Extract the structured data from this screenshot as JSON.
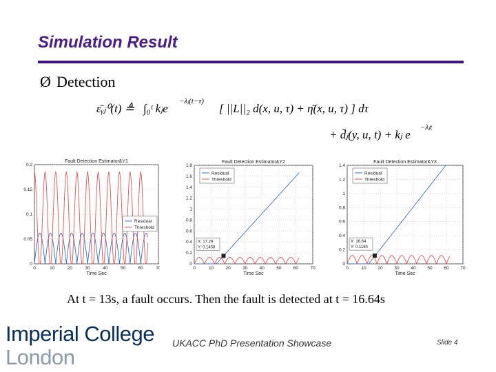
{
  "slide": {
    "title": "Simulation Result",
    "bullet": "Detection",
    "bullet_symbol": "Ø",
    "formula": {
      "lhs": "ε̄ᵧⱼ⁰(t) ≜",
      "integral": "∫₀ᵗ kⱼe",
      "exp1": "−λⱼ(t−τ)",
      "body": "[ ||L||₂ d(x, u, τ) + η̄(x, u, τ) ] dτ",
      "line2": "+ d̄ⱼ(y, u, t) + kⱼ e",
      "exp2": "−λⱼt"
    },
    "caption": "At t = 13s, a fault occurs.  Then the fault is detected at t = 16.64s",
    "footer": {
      "logo_line1": "Imperial College",
      "logo_line2": "London",
      "center": "UKACC PhD Presentation Showcase",
      "slide_number": "Slide 4"
    }
  },
  "chart_data": [
    {
      "type": "line",
      "title": "Fault Detection Estimator&Y1",
      "xlabel": "Time Sec",
      "xlim": [
        0,
        70
      ],
      "ylim": [
        0,
        0.2
      ],
      "xticks": [
        0,
        10,
        20,
        30,
        40,
        50,
        60,
        70
      ],
      "yticks": [
        0,
        0.05,
        0.1,
        0.15,
        0.2
      ],
      "legend": "center-right",
      "series": [
        {
          "name": "Residual",
          "color": "#3b6fc4",
          "kind": "arch",
          "period": 6,
          "amp": 0.062,
          "tEnd": 64
        },
        {
          "name": "Threshold",
          "color": "#e25555",
          "kind": "wave",
          "period": 6,
          "base": 0.09,
          "amp": 0.095,
          "tEnd": 64
        }
      ]
    },
    {
      "type": "line",
      "title": "Fault Detection Estimator&Y2",
      "xlabel": "Time Sec",
      "xlim": [
        0,
        70
      ],
      "ylim": [
        0,
        1.8
      ],
      "xticks": [
        0,
        10,
        20,
        30,
        40,
        50,
        60,
        70
      ],
      "yticks": [
        0,
        0.2,
        0.4,
        0.6,
        0.8,
        1,
        1.2,
        1.4,
        1.6,
        1.8
      ],
      "legend": "top-left",
      "datatip": {
        "x": 17.29,
        "y": 0.1458,
        "label_x": "X: 17.29",
        "label_y": "Y: 0.1458"
      },
      "series": [
        {
          "name": "Residual",
          "color": "#3b6fc4",
          "kind": "ramp",
          "t0": 13,
          "slope": 0.034,
          "tEnd": 62
        },
        {
          "name": "Threshold",
          "color": "#e25555",
          "kind": "arch",
          "period": 6,
          "amp": 0.12,
          "tEnd": 62
        }
      ]
    },
    {
      "type": "line",
      "title": "Fault Detection Estimator&Y3",
      "xlabel": "Time Sec",
      "xlim": [
        0,
        70
      ],
      "ylim": [
        0,
        1.4
      ],
      "xticks": [
        0,
        10,
        20,
        30,
        40,
        50,
        60,
        70
      ],
      "yticks": [
        0,
        0.2,
        0.4,
        0.6,
        0.8,
        1,
        1.2,
        1.4
      ],
      "legend": "top-left",
      "datatip": {
        "x": 16.64,
        "y": 0.1164,
        "label_x": "X: 16.64",
        "label_y": "Y: 0.1164"
      },
      "series": [
        {
          "name": "Residual",
          "color": "#3b6fc4",
          "kind": "ramp",
          "t0": 13,
          "slope": 0.03,
          "tEnd": 62
        },
        {
          "name": "Threshold",
          "color": "#e25555",
          "kind": "arch",
          "period": 6,
          "amp": 0.12,
          "tEnd": 62
        }
      ]
    }
  ]
}
